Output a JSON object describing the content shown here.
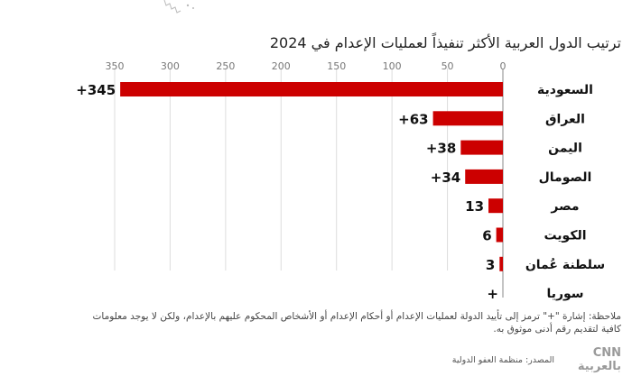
{
  "chart_data": {
    "type": "bar",
    "orientation": "horizontal",
    "title": "ترتيب الدول العربية الأكثر تنفيذاً لعمليات الإعدام في 2024",
    "categories": [
      "السعودية",
      "العراق",
      "اليمن",
      "الصومال",
      "مصر",
      "الكويت",
      "سلطنة عُمان",
      "سوريا"
    ],
    "values": [
      345,
      63,
      38,
      34,
      13,
      6,
      3,
      0
    ],
    "value_labels": [
      "+345",
      "+63",
      "+38",
      "+34",
      "13",
      "6",
      "3",
      "+"
    ],
    "xticks": [
      0,
      50,
      100,
      150,
      200,
      250,
      300,
      350
    ],
    "xlim": [
      0,
      350
    ],
    "bar_color": "#cc0000",
    "grid": true
  },
  "note": "ملاحظة: إشارة \"+\" ترمز إلى تأييد الدولة لعمليات الإعدام أو أحكام الإعدام أو الأشخاص المحكوم عليهم بالإعدام، ولكن لا يوجد معلومات كافية لتقديم رقم أدنى موثوق به.",
  "source": "المصدر: منظمة العفو الدولية",
  "logo": "CNN بالعربية"
}
